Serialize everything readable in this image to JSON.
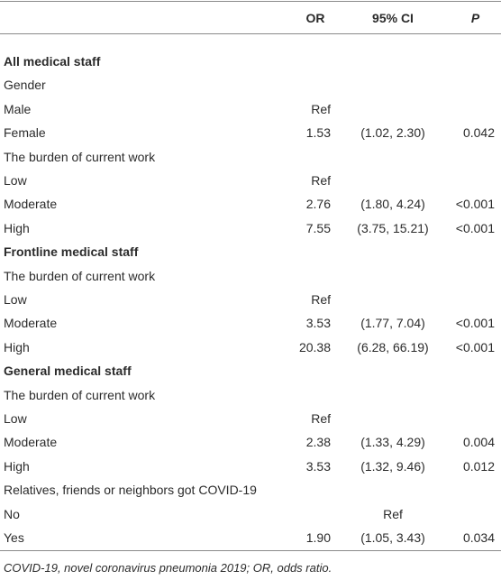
{
  "header": {
    "or": "OR",
    "ci": "95% CI",
    "p": "P"
  },
  "rows": [
    {
      "label": "All medical staff",
      "kind": "section"
    },
    {
      "label": "Gender"
    },
    {
      "label": "Male",
      "or": "Ref"
    },
    {
      "label": "Female",
      "or": "1.53",
      "ci": "(1.02, 2.30)",
      "p": "0.042"
    },
    {
      "label": "The burden of current work"
    },
    {
      "label": "Low",
      "or": "Ref"
    },
    {
      "label": "Moderate",
      "or": "2.76",
      "ci": "(1.80, 4.24)",
      "p": "<0.001"
    },
    {
      "label": "High",
      "or": "7.55",
      "ci": "(3.75, 15.21)",
      "p": "<0.001"
    },
    {
      "label": "Frontline medical staff",
      "kind": "section"
    },
    {
      "label": "The burden of current work"
    },
    {
      "label": "Low",
      "or": "Ref"
    },
    {
      "label": "Moderate",
      "or": "3.53",
      "ci": "(1.77, 7.04)",
      "p": "<0.001"
    },
    {
      "label": "High",
      "or": "20.38",
      "ci": "(6.28, 66.19)",
      "p": "<0.001"
    },
    {
      "label": "General medical staff",
      "kind": "section"
    },
    {
      "label": "The burden of current work"
    },
    {
      "label": "Low",
      "or": "Ref"
    },
    {
      "label": "Moderate",
      "or": "2.38",
      "ci": "(1.33, 4.29)",
      "p": "0.004"
    },
    {
      "label": "High",
      "or": "3.53",
      "ci": "(1.32, 9.46)",
      "p": "0.012"
    },
    {
      "label": "Relatives, friends or neighbors got COVID-19"
    },
    {
      "label": "No",
      "ci": "Ref"
    },
    {
      "label": "Yes",
      "or": "1.90",
      "ci": "(1.05, 3.43)",
      "p": "0.034"
    }
  ],
  "footnote": "COVID-19, novel coronavirus pneumonia 2019; OR, odds ratio."
}
